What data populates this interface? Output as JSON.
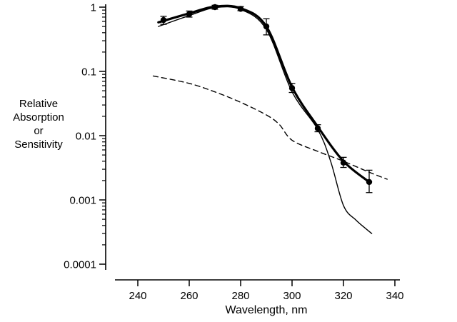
{
  "colors": {
    "ink": "#000000",
    "background": "#ffffff"
  },
  "chart_data": {
    "type": "line",
    "title": "",
    "xlabel": "Wavelength, nm",
    "ylabel": "Relative Absorption or Sensitivity",
    "ylabel_lines": [
      "Relative",
      "Absorption",
      "or",
      "Sensitivity"
    ],
    "x_axis": {
      "min": 240,
      "max": 340,
      "ticks": [
        240,
        260,
        280,
        300,
        320,
        340
      ],
      "tick_labels": [
        "240",
        "260",
        "280",
        "300",
        "320",
        "340"
      ]
    },
    "y_axis": {
      "scale": "log",
      "min": 0.0001,
      "max": 1,
      "ticks": [
        1,
        0.1,
        0.01,
        0.001,
        0.0001
      ],
      "tick_labels": [
        "1",
        "0.1",
        "0.01",
        "0.001",
        "0.0001"
      ],
      "minor_ticks": "log-decades"
    },
    "legend": "none",
    "grid": false,
    "series": [
      {
        "name": "dashed-absorption-curve",
        "style": "dashed",
        "x": [
          246,
          260,
          270,
          280,
          290,
          295,
          300,
          310,
          320,
          330,
          337
        ],
        "y": [
          0.085,
          0.065,
          0.048,
          0.033,
          0.021,
          0.015,
          0.0085,
          0.0057,
          0.004,
          0.0027,
          0.0021
        ]
      },
      {
        "name": "thin-solid-absorption-curve",
        "style": "thin-solid",
        "x": [
          248,
          260,
          270,
          280,
          290,
          300,
          310,
          315,
          320,
          325,
          331
        ],
        "y": [
          0.5,
          0.74,
          0.98,
          0.92,
          0.45,
          0.048,
          0.0125,
          0.004,
          0.00082,
          0.00048,
          0.0003
        ]
      },
      {
        "name": "thick-solid-action-spectrum-curve",
        "style": "thick-solid",
        "x": [
          248,
          260,
          270,
          280,
          290,
          300,
          310,
          320,
          330
        ],
        "y": [
          0.58,
          0.8,
          1.02,
          0.96,
          0.5,
          0.057,
          0.0138,
          0.004,
          0.0019
        ]
      },
      {
        "name": "measured-points",
        "style": "points-errorbars",
        "x": [
          250,
          260,
          270,
          280,
          290,
          300,
          310,
          320,
          330
        ],
        "y": [
          0.63,
          0.78,
          1.0,
          0.94,
          0.5,
          0.055,
          0.013,
          0.0038,
          0.0019
        ],
        "yerr_lo": [
          0.54,
          0.7,
          0.93,
          0.88,
          0.37,
          0.047,
          0.0115,
          0.0032,
          0.0013
        ],
        "yerr_hi": [
          0.72,
          0.87,
          1.07,
          1.02,
          0.66,
          0.065,
          0.0148,
          0.0046,
          0.0029
        ]
      }
    ]
  }
}
